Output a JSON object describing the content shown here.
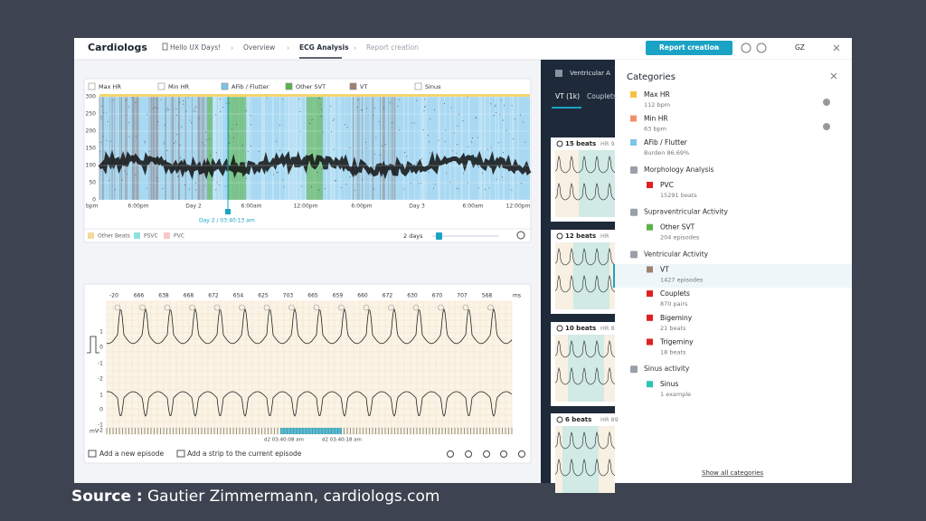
{
  "nav": {
    "brand": "Cardiologs",
    "breadcrumbs": [
      "Hello UX Days!",
      "Overview",
      "ECG Analysis",
      "Report creation"
    ],
    "button": "Report creation",
    "avatar": "GZ"
  },
  "trend": {
    "legend": [
      "Max HR",
      "Min HR",
      "AFib / Flutter",
      "Other SVT",
      "VT",
      "Sinus"
    ],
    "y_labels": [
      "300",
      "250",
      "200",
      "150",
      "100",
      "50",
      "0"
    ],
    "unit": "bpm",
    "x_labels": [
      "6:00pm",
      "Day 2",
      "6:00am",
      "12:00pm",
      "6:00pm",
      "Day 3",
      "6:00am",
      "12:00pm"
    ],
    "cursor": "Day 2 / 03:40:13 am",
    "bottom_legend": [
      "Other Beats",
      "PSVC",
      "PVC"
    ],
    "zoom": "2 days"
  },
  "strip": {
    "rr": [
      "-20",
      "666",
      "638",
      "668",
      "672",
      "654",
      "625",
      "703",
      "665",
      "659",
      "660",
      "672",
      "630",
      "670",
      "707",
      "568"
    ],
    "rr_unit": "ms",
    "y_labels": [
      "1",
      "0",
      "-1",
      "-2",
      "1",
      "0",
      "-1",
      "-2"
    ],
    "y_unit": "mV",
    "times": [
      "d2 03:40:08 am",
      "d2 03:40:18 am"
    ],
    "actions": [
      "Add a new episode",
      "Add a strip to the current episode"
    ]
  },
  "episodes": {
    "header": "Ventricular A",
    "tabs": [
      "VT (1k)",
      "Couplets"
    ],
    "cards": [
      {
        "beats": "15 beats",
        "hr": "HR 9"
      },
      {
        "beats": "12 beats",
        "hr": "HR"
      },
      {
        "beats": "10 beats",
        "hr": "HR 8"
      },
      {
        "beats": "6 beats",
        "hr": "HR 89"
      }
    ]
  },
  "categories": {
    "title": "Categories",
    "top_items": [
      {
        "name": "Max HR",
        "detail": "112 bpm",
        "color": "#f5c242"
      },
      {
        "name": "Min HR",
        "detail": "63 bpm",
        "color": "#f0916c"
      },
      {
        "name": "AFib / Flutter",
        "detail": "Burden 86.69%",
        "color": "#7cc4ea"
      }
    ],
    "groups": [
      {
        "name": "Morphology Analysis",
        "items": [
          {
            "name": "PVC",
            "detail": "15291 beats",
            "color": "#e02020"
          }
        ]
      },
      {
        "name": "Supraventricular Activity",
        "items": [
          {
            "name": "Other SVT",
            "detail": "204 episodes",
            "color": "#5ab34a"
          }
        ]
      },
      {
        "name": "Ventricular Activity",
        "items": [
          {
            "name": "VT",
            "detail": "1427 episodes",
            "color": "#a08070"
          },
          {
            "name": "Couplets",
            "detail": "870 pairs",
            "color": "#e02020"
          },
          {
            "name": "Bigeminy",
            "detail": "21 beats",
            "color": "#e02020"
          },
          {
            "name": "Trigeminy",
            "detail": "18 beats",
            "color": "#e02020"
          }
        ]
      },
      {
        "name": "Sinus activity",
        "items": [
          {
            "name": "Sinus",
            "detail": "1 example",
            "color": "#2cc4b0"
          }
        ]
      }
    ],
    "footer": "Show all categories"
  },
  "caption": {
    "label": "Source :",
    "text": "Gautier Zimmermann, cardiologs.com"
  }
}
